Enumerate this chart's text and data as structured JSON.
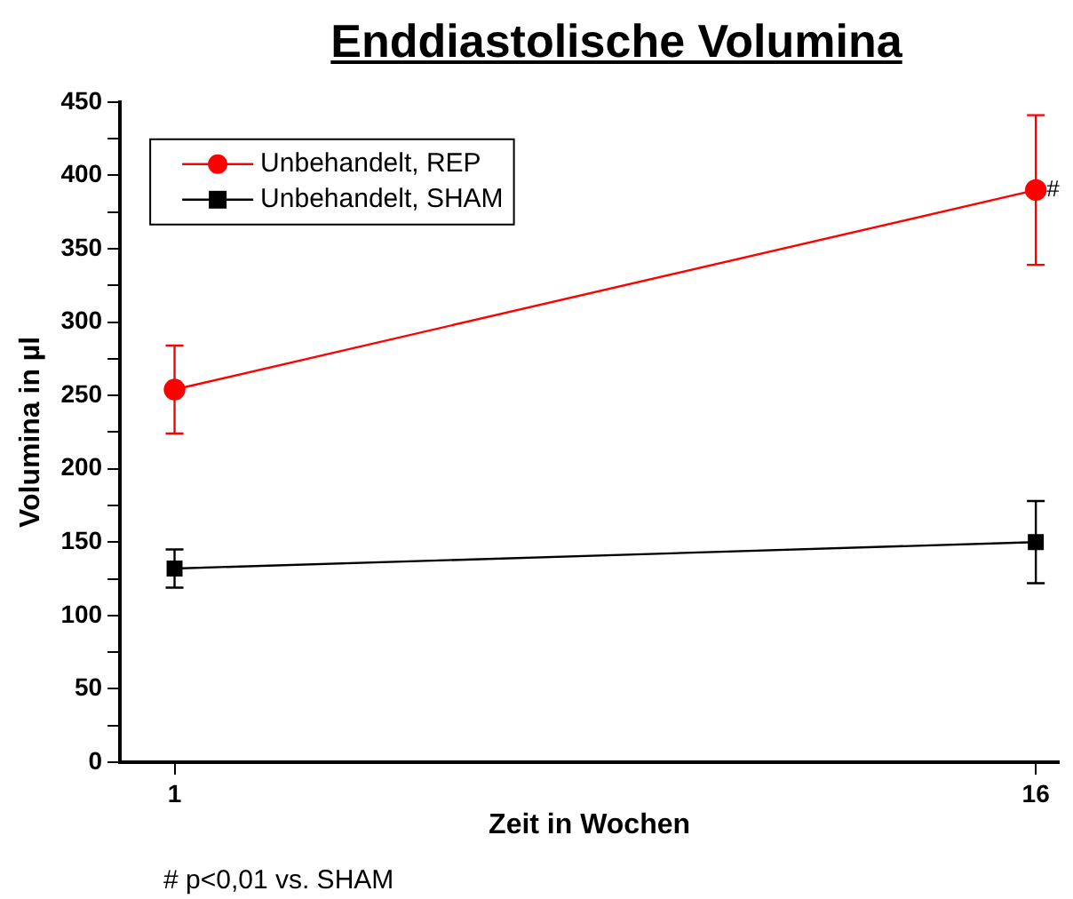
{
  "chart_data": {
    "type": "line",
    "title": "Enddiastolische Volumina",
    "xlabel": "Zeit in Wochen",
    "ylabel": "Volumina in µl",
    "x": [
      1,
      16
    ],
    "xlim": [
      0.05,
      16.4
    ],
    "xticks": [
      1,
      16
    ],
    "ylim": [
      0,
      450
    ],
    "yticks": [
      0,
      {
        "value": 25,
        "label": null
      },
      50,
      {
        "value": 75,
        "label": null
      },
      100,
      {
        "value": 125,
        "label": null
      },
      150,
      {
        "value": 175,
        "label": null
      },
      200,
      {
        "value": 225,
        "label": null
      },
      250,
      {
        "value": 275,
        "label": null
      },
      300,
      {
        "value": 325,
        "label": null
      },
      350,
      {
        "value": 375,
        "label": null
      },
      400,
      {
        "value": 425,
        "label": null
      },
      450
    ],
    "series": [
      {
        "name": "Unbehandelt, REP",
        "color": "#ff0000",
        "marker": "circle",
        "values": [
          254,
          390
        ],
        "errors": [
          30,
          51
        ]
      },
      {
        "name": "Unbehandelt, SHAM",
        "color": "#000000",
        "marker": "square",
        "values": [
          132,
          150
        ],
        "errors": [
          13,
          28
        ]
      }
    ],
    "annotations": [
      {
        "text": "#",
        "x": 16,
        "y": 390
      },
      "# p<0,01 vs. SHAM"
    ],
    "grid": false,
    "legend": "top left",
    "line_style": "solid"
  }
}
